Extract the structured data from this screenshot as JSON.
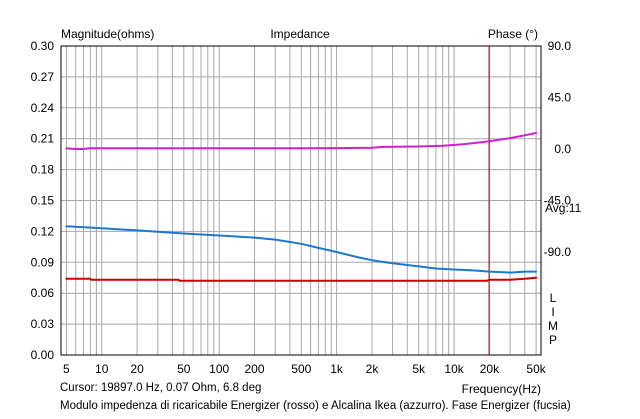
{
  "chart_data": {
    "type": "line",
    "title": "Impedance",
    "ylabel": "Magnitude(ohms)",
    "y2label": "Phase (°)",
    "xlabel": "Frequency(Hz)",
    "x_scale": "log",
    "xlim": [
      4.5,
      55000
    ],
    "ylim": [
      0,
      0.3
    ],
    "y2lim": [
      -180,
      90
    ],
    "y_ticks": [
      "0.00",
      "0.03",
      "0.06",
      "0.09",
      "0.12",
      "0.15",
      "0.18",
      "0.21",
      "0.24",
      "0.27",
      "0.30"
    ],
    "y2_ticks": [
      "90.0",
      "45.0",
      "0.0",
      "-45.0",
      "-90.0"
    ],
    "x_ticks": [
      {
        "v": 5,
        "label": "5"
      },
      {
        "v": 10,
        "label": "10"
      },
      {
        "v": 20,
        "label": "20"
      },
      {
        "v": 50,
        "label": "50"
      },
      {
        "v": 100,
        "label": "100"
      },
      {
        "v": 200,
        "label": "200"
      },
      {
        "v": 500,
        "label": "500"
      },
      {
        "v": 1000,
        "label": "1k"
      },
      {
        "v": 2000,
        "label": "2k"
      },
      {
        "v": 5000,
        "label": "5k"
      },
      {
        "v": 10000,
        "label": "10k"
      },
      {
        "v": 20000,
        "label": "20k"
      },
      {
        "v": 50000,
        "label": "50k"
      }
    ],
    "avg_label": "Avg:11",
    "cursor_freq": 19897,
    "series": [
      {
        "name": "Energizer magnitude (rosso)",
        "axis": "left",
        "color": "#cc0000",
        "points": [
          [
            5,
            0.074
          ],
          [
            8,
            0.074
          ],
          [
            8.2,
            0.073
          ],
          [
            45,
            0.073
          ],
          [
            46,
            0.072
          ],
          [
            500,
            0.072
          ],
          [
            5000,
            0.072
          ],
          [
            19000,
            0.072
          ],
          [
            20000,
            0.073
          ],
          [
            30000,
            0.073
          ],
          [
            40000,
            0.074
          ],
          [
            50000,
            0.075
          ]
        ]
      },
      {
        "name": "Alcalina Ikea magnitude (azzurro)",
        "axis": "left",
        "color": "#1e78d0",
        "points": [
          [
            5,
            0.125
          ],
          [
            10,
            0.123
          ],
          [
            20,
            0.121
          ],
          [
            50,
            0.118
          ],
          [
            100,
            0.116
          ],
          [
            200,
            0.114
          ],
          [
            300,
            0.112
          ],
          [
            500,
            0.108
          ],
          [
            700,
            0.104
          ],
          [
            1000,
            0.1
          ],
          [
            1500,
            0.095
          ],
          [
            2000,
            0.092
          ],
          [
            3000,
            0.089
          ],
          [
            5000,
            0.086
          ],
          [
            7000,
            0.084
          ],
          [
            10000,
            0.083
          ],
          [
            15000,
            0.082
          ],
          [
            20000,
            0.081
          ],
          [
            30000,
            0.08
          ],
          [
            40000,
            0.081
          ],
          [
            50000,
            0.081
          ]
        ]
      },
      {
        "name": "Energizer phase (fucsia)",
        "axis": "right",
        "color": "#d020d0",
        "points": [
          [
            5,
            0.5
          ],
          [
            6,
            0
          ],
          [
            7,
            0
          ],
          [
            8,
            0.6
          ],
          [
            20,
            0.7
          ],
          [
            100,
            0.7
          ],
          [
            500,
            0.7
          ],
          [
            1000,
            0.8
          ],
          [
            2000,
            1.1
          ],
          [
            2500,
            1.8
          ],
          [
            5000,
            2.2
          ],
          [
            8000,
            2.8
          ],
          [
            12000,
            4.2
          ],
          [
            20000,
            6.8
          ],
          [
            30000,
            9.5
          ],
          [
            40000,
            12
          ],
          [
            50000,
            14
          ]
        ]
      }
    ]
  },
  "cursor_text": "Cursor: 19897.0 Hz, 0.07 Ohm, 6.8 deg",
  "caption": "Modulo impedenza di ricaricabile Energizer (rosso) e Alcalina Ikea (azzurro). Fase Energizer (fucsia)",
  "lim_letters": [
    "L",
    "I",
    "M",
    "P"
  ]
}
